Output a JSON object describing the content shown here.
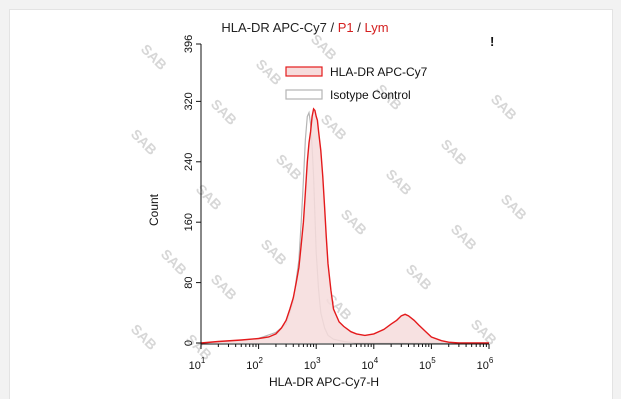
{
  "chart_data": {
    "type": "area",
    "title_parts": [
      {
        "text": "HLA-DR APC-Cy7",
        "color": "#222222"
      },
      {
        "text": " / ",
        "color": "#222222"
      },
      {
        "text": "P1",
        "color": "#d42020"
      },
      {
        "text": " / ",
        "color": "#222222"
      },
      {
        "text": "Lym",
        "color": "#d42020"
      }
    ],
    "corner_mark": "!",
    "xlabel": "HLA-DR APC-Cy7-H",
    "ylabel": "Count",
    "x_scale": "log",
    "xlim": [
      10,
      1000000
    ],
    "ylim": [
      0,
      396
    ],
    "x_ticks": [
      {
        "base": "10",
        "exp": "1",
        "value": 10
      },
      {
        "base": "10",
        "exp": "2",
        "value": 100
      },
      {
        "base": "10",
        "exp": "3",
        "value": 1000
      },
      {
        "base": "10",
        "exp": "4",
        "value": 10000
      },
      {
        "base": "10",
        "exp": "5",
        "value": 100000
      },
      {
        "base": "10",
        "exp": "6",
        "value": 1000000
      }
    ],
    "y_ticks": [
      "0",
      "80",
      "160",
      "240",
      "320",
      "396"
    ],
    "legend_position": "top-right",
    "watermark": "SAB",
    "series": [
      {
        "name": "HLA-DR APC-Cy7",
        "color": "#e41a1c",
        "fill": "#f6dcdc",
        "x": [
          10,
          20,
          50,
          100,
          150,
          200,
          250,
          300,
          350,
          400,
          450,
          500,
          550,
          600,
          650,
          700,
          750,
          800,
          850,
          900,
          950,
          1000,
          1050,
          1100,
          1200,
          1300,
          1400,
          1500,
          1600,
          1800,
          2000,
          2500,
          3000,
          4000,
          5000,
          7000,
          10000,
          15000,
          20000,
          25000,
          30000,
          35000,
          40000,
          50000,
          60000,
          80000,
          100000,
          150000,
          200000,
          300000,
          500000,
          1000000
        ],
        "y": [
          0,
          2,
          4,
          6,
          8,
          12,
          20,
          30,
          45,
          60,
          80,
          100,
          130,
          160,
          200,
          240,
          265,
          280,
          300,
          310,
          308,
          300,
          295,
          280,
          255,
          220,
          180,
          140,
          105,
          70,
          45,
          28,
          22,
          15,
          12,
          10,
          12,
          18,
          25,
          30,
          36,
          38,
          36,
          30,
          24,
          15,
          8,
          3,
          1,
          0,
          0,
          0
        ]
      },
      {
        "name": "Isotype Control",
        "color": "#b5b5b5",
        "fill": "none",
        "x": [
          10,
          30,
          100,
          200,
          300,
          400,
          500,
          550,
          600,
          650,
          700,
          750,
          800,
          850,
          900,
          950,
          1000,
          1100,
          1200,
          1400,
          1600,
          2000,
          3000,
          5000,
          10000,
          100000,
          1000000
        ],
        "y": [
          0,
          2,
          6,
          14,
          25,
          55,
          110,
          160,
          215,
          270,
          300,
          305,
          290,
          260,
          220,
          170,
          120,
          70,
          40,
          20,
          10,
          5,
          2,
          0,
          0,
          0,
          0
        ]
      }
    ]
  }
}
